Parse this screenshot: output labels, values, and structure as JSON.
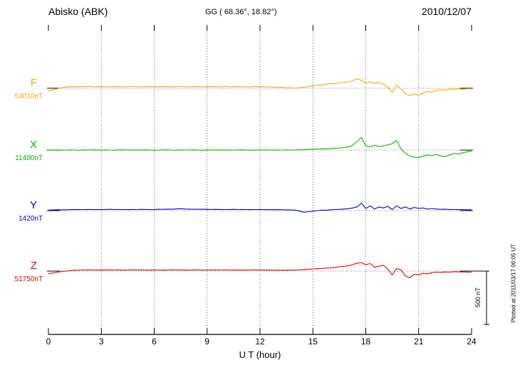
{
  "header": {
    "station": "Abisko (ABK)",
    "coords": "GG ( 68.36°,  18.82°)",
    "date": "2010/12/07"
  },
  "footer": {
    "plotted_at": "Plotted at 2011/03/17 06:05 UT"
  },
  "scale_bar": {
    "label": "500 nT",
    "nT": 500
  },
  "chart_data": {
    "type": "line",
    "title": "Abisko (ABK) magnetogram 2010/12/07",
    "xlabel": "U T (hour)",
    "x_start": 0,
    "x_step": 0.25,
    "x_end": 24,
    "x_ticks": [
      0,
      3,
      6,
      9,
      12,
      15,
      18,
      21,
      24
    ],
    "grid": "dotted-vertical-every-3h",
    "legend_position": "left-of-traces",
    "scale_bar_nT": 500,
    "series": [
      {
        "id": "F",
        "label": "F",
        "baseline_label": "53010nT",
        "baseline_nT": 53010,
        "color": "#f2a900",
        "offsets_nT": [
          -25,
          -15,
          -5,
          5,
          12,
          15,
          14,
          16,
          15,
          17,
          15,
          14,
          16,
          15,
          13,
          15,
          16,
          14,
          15,
          17,
          15,
          14,
          16,
          15,
          13,
          14,
          15,
          16,
          14,
          15,
          17,
          15,
          14,
          16,
          15,
          13,
          15,
          16,
          14,
          15,
          17,
          15,
          14,
          16,
          15,
          13,
          15,
          16,
          14,
          15,
          13,
          12,
          10,
          8,
          5,
          3,
          0,
          5,
          10,
          15,
          25,
          30,
          28,
          35,
          45,
          40,
          50,
          55,
          60,
          70,
          90,
          75,
          50,
          60,
          45,
          55,
          35,
          10,
          -40,
          30,
          -10,
          -50,
          -70,
          -55,
          -65,
          -45,
          -30,
          -35,
          -20,
          -15,
          -18,
          -10,
          -8,
          -5,
          -8,
          -5,
          -5
        ]
      },
      {
        "id": "X",
        "label": "X",
        "baseline_label": "11400nT",
        "baseline_nT": 11400,
        "color": "#00b400",
        "offsets_nT": [
          0,
          2,
          -2,
          1,
          0,
          3,
          0,
          -2,
          2,
          0,
          3,
          1,
          -1,
          2,
          0,
          -2,
          1,
          3,
          0,
          2,
          -1,
          1,
          2,
          0,
          -2,
          0,
          1,
          3,
          0,
          -1,
          2,
          0,
          1,
          3,
          0,
          -2,
          1,
          0,
          2,
          1,
          -1,
          2,
          0,
          1,
          3,
          0,
          -2,
          1,
          0,
          2,
          0,
          1,
          -1,
          0,
          2,
          0,
          0,
          3,
          5,
          8,
          8,
          10,
          12,
          12,
          15,
          18,
          20,
          25,
          30,
          45,
          80,
          120,
          40,
          30,
          45,
          35,
          40,
          50,
          60,
          90,
          10,
          -30,
          -55,
          -65,
          -70,
          -55,
          -45,
          -50,
          -40,
          -55,
          -60,
          -45,
          -30,
          -35,
          -25,
          -15,
          -10
        ]
      },
      {
        "id": "Y",
        "label": "Y",
        "baseline_label": "1420nT",
        "baseline_nT": 1420,
        "color": "#0000e0",
        "offsets_nT": [
          5,
          6,
          8,
          7,
          8,
          9,
          10,
          9,
          10,
          11,
          10,
          9,
          10,
          11,
          12,
          10,
          11,
          10,
          9,
          11,
          10,
          12,
          11,
          10,
          11,
          13,
          12,
          14,
          13,
          16,
          18,
          15,
          14,
          13,
          12,
          13,
          12,
          11,
          12,
          11,
          10,
          11,
          12,
          10,
          11,
          10,
          9,
          10,
          11,
          10,
          9,
          8,
          9,
          8,
          7,
          6,
          5,
          -5,
          -15,
          -10,
          -5,
          0,
          5,
          3,
          8,
          10,
          12,
          15,
          18,
          25,
          35,
          70,
          20,
          45,
          15,
          35,
          25,
          40,
          10,
          45,
          20,
          35,
          15,
          30,
          20,
          25,
          15,
          20,
          15,
          12,
          14,
          11,
          10,
          9,
          10,
          8,
          8
        ]
      },
      {
        "id": "Z",
        "label": "Z",
        "baseline_label": "51750nT",
        "baseline_nT": 51750,
        "color": "#e00000",
        "offsets_nT": [
          -25,
          -18,
          -10,
          -4,
          0,
          4,
          8,
          10,
          10,
          12,
          10,
          9,
          11,
          10,
          12,
          10,
          11,
          9,
          10,
          12,
          10,
          11,
          10,
          9,
          11,
          10,
          9,
          10,
          12,
          10,
          11,
          9,
          10,
          12,
          10,
          9,
          10,
          11,
          9,
          10,
          12,
          10,
          11,
          9,
          10,
          9,
          10,
          11,
          10,
          9,
          10,
          8,
          9,
          8,
          8,
          9,
          10,
          12,
          15,
          18,
          20,
          22,
          25,
          28,
          30,
          35,
          40,
          45,
          50,
          60,
          75,
          80,
          60,
          70,
          35,
          45,
          55,
          20,
          -35,
          25,
          10,
          -45,
          -60,
          -30,
          -35,
          -20,
          -25,
          -15,
          -10,
          -12,
          -8,
          -10,
          -5,
          -6,
          -8,
          -9,
          -10
        ]
      }
    ]
  }
}
